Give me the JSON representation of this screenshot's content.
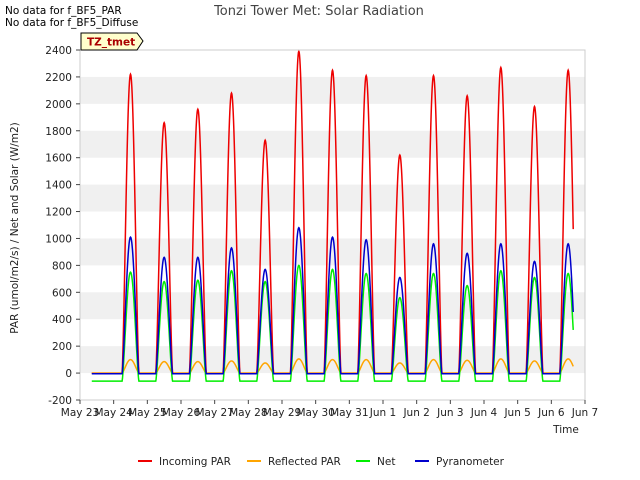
{
  "notices": [
    "No data for f_BF5_PAR",
    "No data for f_BF5_Diffuse"
  ],
  "site_badge": "TZ_tmet",
  "chart_data": {
    "type": "line",
    "title": "Tonzi Tower Met: Solar Radiation",
    "xlabel": "Time",
    "ylabel": "PAR (umol/m2/s) / Net and Solar (W/m2)",
    "xlim": [
      0,
      15
    ],
    "ylim": [
      -200,
      2400
    ],
    "x_ticks": [
      0,
      1,
      2,
      3,
      4,
      5,
      6,
      7,
      8,
      9,
      10,
      11,
      12,
      13,
      14,
      15
    ],
    "x_tick_labels": [
      "May 23",
      "May 24",
      "May 25",
      "May 26",
      "May 27",
      "May 28",
      "May 29",
      "May 30",
      "May 31",
      "Jun 1",
      "Jun 2",
      "Jun 3",
      "Jun 4",
      "Jun 5",
      "Jun 6",
      "Jun 7"
    ],
    "y_ticks": [
      -200,
      0,
      200,
      400,
      600,
      800,
      1000,
      1200,
      1400,
      1600,
      1800,
      2000,
      2200,
      2400
    ],
    "grid": "horizontal bands",
    "legend_position": "bottom",
    "days": [
      "May 24",
      "May 25",
      "May 26",
      "May 27",
      "May 28",
      "May 29",
      "May 30",
      "May 31",
      "Jun 1",
      "Jun 2",
      "Jun 3",
      "Jun 4",
      "Jun 5",
      "Jun 6"
    ],
    "series": [
      {
        "name": "Incoming PAR",
        "color": "#ee0000",
        "night_value": 0,
        "daily_peak": [
          2220,
          1860,
          1960,
          2080,
          1730,
          2390,
          2250,
          2210,
          1620,
          2210,
          2060,
          2270,
          1980,
          2250
        ]
      },
      {
        "name": "Reflected PAR",
        "color": "#ffa500",
        "night_value": 0,
        "daily_peak": [
          100,
          85,
          85,
          90,
          75,
          105,
          100,
          100,
          75,
          100,
          95,
          105,
          90,
          105
        ]
      },
      {
        "name": "Net",
        "color": "#00ee00",
        "night_value": -60,
        "daily_peak": [
          750,
          680,
          690,
          760,
          680,
          800,
          770,
          740,
          560,
          740,
          650,
          760,
          710,
          740
        ]
      },
      {
        "name": "Pyranometer",
        "color": "#0000cc",
        "night_value": -5,
        "daily_peak": [
          1010,
          860,
          860,
          930,
          770,
          1080,
          1010,
          990,
          710,
          960,
          890,
          960,
          830,
          960
        ]
      }
    ]
  }
}
